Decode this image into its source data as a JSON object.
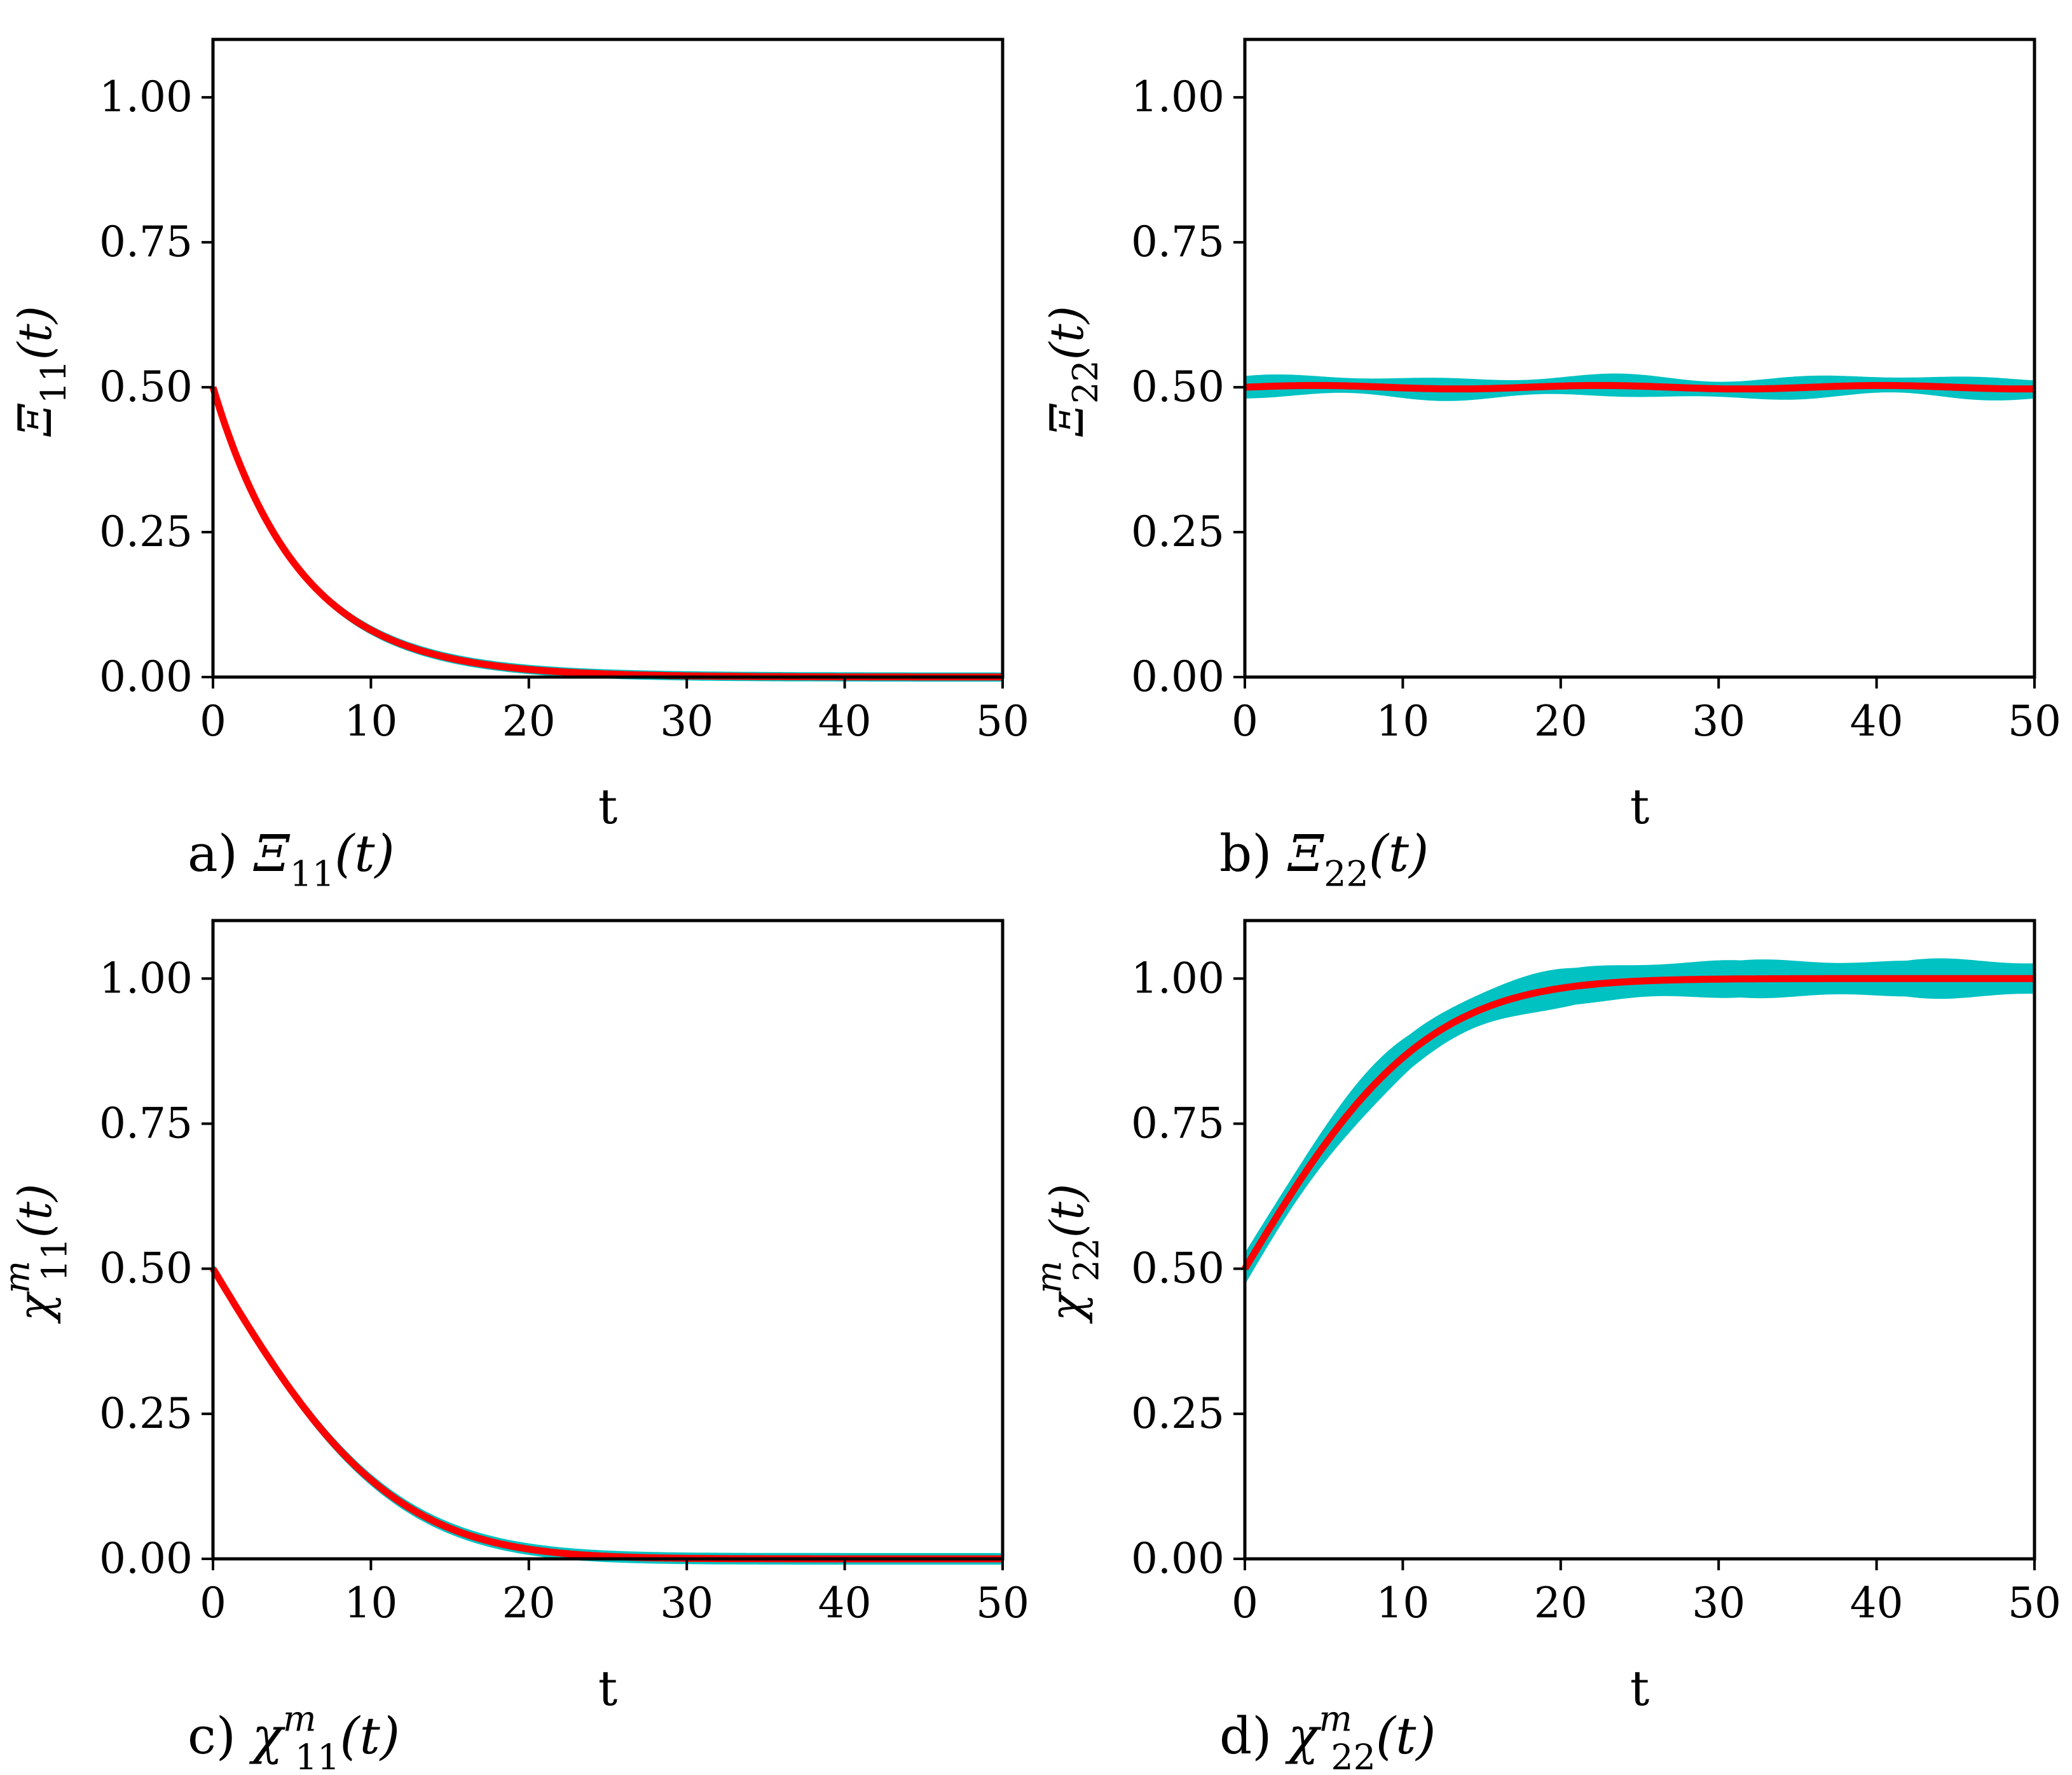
{
  "colors": {
    "mean": "#ff0000",
    "band": "#00c2c2",
    "axis": "#000000",
    "bg": "#ffffff"
  },
  "chart_data": [
    {
      "id": "a",
      "type": "line",
      "panel_label": "a)",
      "caption_symbol": "Ξ",
      "caption_sub": "11",
      "caption_arg": "(t)",
      "ylabel_symbol": "Ξ",
      "ylabel_sub": "11",
      "ylabel_sup": "",
      "ylabel_arg": "(t)",
      "xlabel": "t",
      "xlim": [
        0,
        50
      ],
      "ylim": [
        0,
        1.1
      ],
      "xticks": [
        "0",
        "10",
        "20",
        "30",
        "40",
        "50"
      ],
      "yticks": [
        "0.00",
        "0.25",
        "0.50",
        "0.75",
        "1.00"
      ],
      "model": {
        "kind": "exp_decay",
        "y0": 0.5,
        "tau": 5.5
      },
      "band": {
        "base": 0.008,
        "wobble": 0.0
      },
      "series": [
        {
          "name": "mean",
          "x": [
            0,
            5,
            10,
            15,
            20,
            30,
            40,
            50
          ],
          "values": [
            0.5,
            0.201,
            0.081,
            0.033,
            0.013,
            0.002,
            0.0,
            0.0
          ]
        }
      ]
    },
    {
      "id": "b",
      "type": "line",
      "panel_label": "b)",
      "caption_symbol": "Ξ",
      "caption_sub": "22",
      "caption_arg": "(t)",
      "ylabel_symbol": "Ξ",
      "ylabel_sub": "22",
      "ylabel_sup": "",
      "ylabel_arg": "(t)",
      "xlabel": "t",
      "xlim": [
        0,
        50
      ],
      "ylim": [
        0,
        1.1
      ],
      "xticks": [
        "0",
        "10",
        "20",
        "30",
        "40",
        "50"
      ],
      "yticks": [
        "0.00",
        "0.25",
        "0.50",
        "0.75",
        "1.00"
      ],
      "model": {
        "kind": "constant",
        "y0": 0.5
      },
      "band": {
        "base": 0.012,
        "wobble": 0.008
      },
      "series": [
        {
          "name": "mean",
          "x": [
            0,
            10,
            20,
            30,
            40,
            50
          ],
          "values": [
            0.5,
            0.5,
            0.5,
            0.5,
            0.505,
            0.5
          ]
        }
      ]
    },
    {
      "id": "c",
      "type": "line",
      "panel_label": "c)",
      "caption_symbol": "χ",
      "caption_sub": "11",
      "caption_sup": "m",
      "caption_arg": "(t)",
      "ylabel_symbol": "χ",
      "ylabel_sub": "11",
      "ylabel_sup": "m",
      "ylabel_arg": "(t)",
      "xlabel": "t",
      "xlim": [
        0,
        50
      ],
      "ylim": [
        0,
        1.1
      ],
      "xticks": [
        "0",
        "10",
        "20",
        "30",
        "40",
        "50"
      ],
      "yticks": [
        "0.00",
        "0.25",
        "0.50",
        "0.75",
        "1.00"
      ],
      "model": {
        "kind": "gauss_decay",
        "y0": 0.5,
        "a": 0.09,
        "b": 0.004
      },
      "band": {
        "base": 0.01,
        "wobble": 0.0
      },
      "series": [
        {
          "name": "mean",
          "x": [
            0,
            5,
            10,
            15,
            20,
            30,
            40,
            50
          ],
          "values": [
            0.5,
            0.27,
            0.12,
            0.045,
            0.016,
            0.002,
            0.0,
            0.0
          ]
        }
      ]
    },
    {
      "id": "d",
      "type": "line",
      "panel_label": "d)",
      "caption_symbol": "χ",
      "caption_sub": "22",
      "caption_sup": "m",
      "caption_arg": "(t)",
      "ylabel_symbol": "χ",
      "ylabel_sub": "22",
      "ylabel_sup": "m",
      "ylabel_arg": "(t)",
      "xlabel": "t",
      "xlim": [
        0,
        50
      ],
      "ylim": [
        0,
        1.1
      ],
      "xticks": [
        "0",
        "10",
        "20",
        "30",
        "40",
        "50"
      ],
      "yticks": [
        "0.00",
        "0.25",
        "0.50",
        "0.75",
        "1.00"
      ],
      "model": {
        "kind": "gauss_rise",
        "y0": 0.5,
        "a": 0.09,
        "b": 0.004
      },
      "band": {
        "base": 0.02,
        "wobble": 0.012
      },
      "series": [
        {
          "name": "mean",
          "x": [
            0,
            5,
            10,
            15,
            20,
            30,
            40,
            50
          ],
          "values": [
            0.5,
            0.73,
            0.88,
            0.955,
            0.984,
            0.998,
            1.0,
            1.0
          ]
        }
      ]
    }
  ]
}
